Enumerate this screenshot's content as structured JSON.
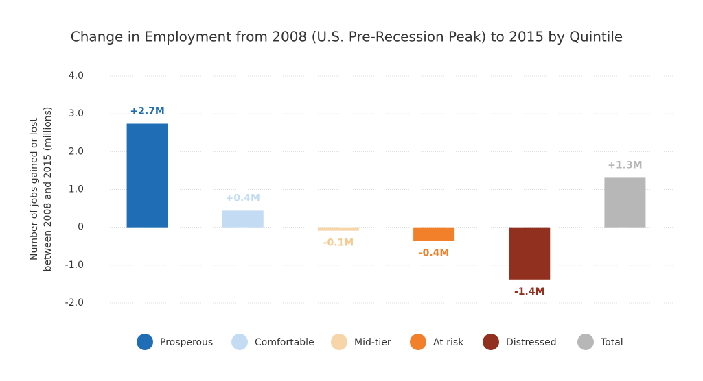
{
  "chart_data": {
    "type": "bar",
    "title": "Change in Employment from 2008 (U.S. Pre-Recession Peak) to 2015 by Quintile",
    "y_label": [
      "Number of jobs gained or lost",
      "between 2008 and 2015 (millions)"
    ],
    "categories": [
      "Prosperous",
      "Comfortable",
      "Mid-tier",
      "At risk",
      "Distressed",
      "Total"
    ],
    "values": [
      2.74,
      0.44,
      -0.09,
      -0.36,
      -1.38,
      1.31
    ],
    "value_labels": [
      "+2.7M",
      "+0.4M",
      "-0.1M",
      "-0.4M",
      "-1.4M",
      "+1.3M"
    ],
    "colors": [
      "#1f6db5",
      "#c4dcf3",
      "#f8d5a8",
      "#f2802a",
      "#923020",
      "#b7b7b7"
    ],
    "label_colors": [
      "#1f6db5",
      "#c4dcf3",
      "#f6c98f",
      "#f2802a",
      "#923020",
      "#b7b7b7"
    ],
    "ylim": [
      -2,
      4
    ],
    "yticks": [
      {
        "value": 4,
        "label": "4.0"
      },
      {
        "value": 3,
        "label": "3.0"
      },
      {
        "value": 2,
        "label": "2.0"
      },
      {
        "value": 1,
        "label": "1.0"
      },
      0,
      {
        "value": -1,
        "label": "-1.0"
      },
      {
        "value": -2,
        "label": "-2.0"
      }
    ],
    "grid": true,
    "legend": "bottom"
  }
}
